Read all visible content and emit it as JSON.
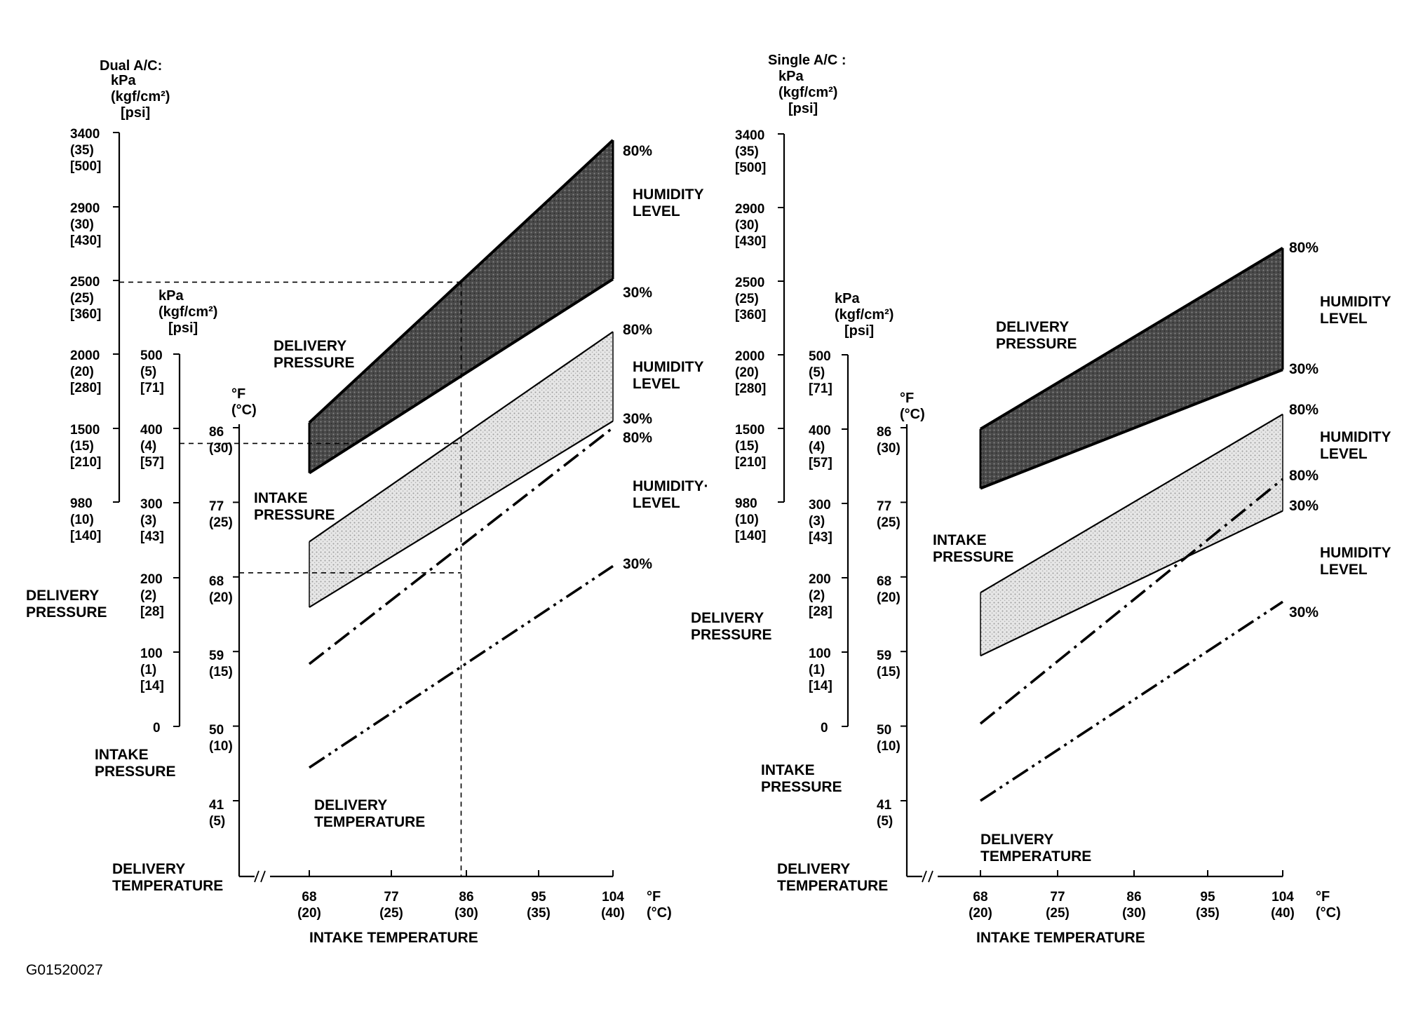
{
  "figure_code": "G01520027",
  "chart_data": [
    {
      "type": "area",
      "title": "Dual A/C:",
      "delivery_pressure_axis": {
        "units": [
          "kPa",
          "(kgf/cm²)",
          "[psi]"
        ],
        "title": [
          "DELIVERY",
          "PRESSURE"
        ],
        "ticks": [
          {
            "kpa": 3400,
            "l1": "3400",
            "l2": "(35)",
            "l3": "[500]"
          },
          {
            "kpa": 2900,
            "l1": "2900",
            "l2": "(30)",
            "l3": "[430]"
          },
          {
            "kpa": 2500,
            "l1": "2500",
            "l2": "(25)",
            "l3": "[360]"
          },
          {
            "kpa": 2000,
            "l1": "2000",
            "l2": "(20)",
            "l3": "[280]"
          },
          {
            "kpa": 1500,
            "l1": "1500",
            "l2": "(15)",
            "l3": "[210]"
          },
          {
            "kpa": 980,
            "l1": "980",
            "l2": "(10)",
            "l3": "[140]"
          }
        ]
      },
      "intake_pressure_axis": {
        "units": [
          "kPa",
          "(kgf/cm²)",
          "[psi]"
        ],
        "title": [
          "INTAKE",
          "PRESSURE"
        ],
        "ticks": [
          {
            "kpa": 500,
            "l1": "500",
            "l2": "(5)",
            "l3": "[71]"
          },
          {
            "kpa": 400,
            "l1": "400",
            "l2": "(4)",
            "l3": "[57]"
          },
          {
            "kpa": 300,
            "l1": "300",
            "l2": "(3)",
            "l3": "[43]"
          },
          {
            "kpa": 200,
            "l1": "200",
            "l2": "(2)",
            "l3": "[28]"
          },
          {
            "kpa": 100,
            "l1": "100",
            "l2": "(1)",
            "l3": "[14]"
          },
          {
            "kpa": 0,
            "l1": "0",
            "l2": "",
            "l3": ""
          }
        ]
      },
      "delivery_temperature_axis": {
        "units": [
          "°F",
          "(°C)"
        ],
        "title": [
          "DELIVERY",
          "TEMPERATURE"
        ],
        "ticks": [
          {
            "f": 86,
            "l1": "86",
            "l2": "(30)"
          },
          {
            "f": 77,
            "l1": "77",
            "l2": "(25)"
          },
          {
            "f": 68,
            "l1": "68",
            "l2": "(20)"
          },
          {
            "f": 59,
            "l1": "59",
            "l2": "(15)"
          },
          {
            "f": 50,
            "l1": "50",
            "l2": "(10)"
          },
          {
            "f": 41,
            "l1": "41",
            "l2": "(5)"
          }
        ]
      },
      "intake_temperature_axis": {
        "title": "INTAKE TEMPERATURE",
        "unit_f": "°F",
        "unit_c": "(°C)",
        "ticks": [
          {
            "f": 68,
            "l1": "68",
            "l2": "(20)"
          },
          {
            "f": 77,
            "l1": "77",
            "l2": "(25)"
          },
          {
            "f": 86,
            "l1": "86",
            "l2": "(30)"
          },
          {
            "f": 95,
            "l1": "95",
            "l2": "(35)"
          },
          {
            "f": 104,
            "l1": "104",
            "l2": "(40)"
          }
        ]
      },
      "bands": [
        {
          "id": "delivery_pressure",
          "label": [
            "DELIVERY",
            "PRESSURE"
          ],
          "fill": "#555555",
          "x": [
            68,
            104
          ],
          "humidity_80_kpa": [
            1500,
            3350
          ],
          "humidity_30_kpa": [
            1170,
            2440
          ],
          "humidity_label": [
            "HUMIDITY",
            "LEVEL"
          ],
          "high_label": "80%",
          "low_label": "30%"
        },
        {
          "id": "intake_pressure",
          "label": [
            "INTAKE",
            "PRESSURE"
          ],
          "fill": "#c4c4c4",
          "x": [
            68,
            104
          ],
          "humidity_80_kpa": [
            248,
            530
          ],
          "humidity_30_kpa": [
            160,
            410
          ],
          "humidity_label": [
            "HUMIDITY",
            "LEVEL"
          ],
          "high_label": "80%",
          "low_label": "30%"
        }
      ],
      "lines": [
        {
          "id": "delivery_temperature_80",
          "label": "80%",
          "x": [
            68,
            104
          ],
          "temp_f": [
            57.5,
            86.0
          ]
        },
        {
          "id": "delivery_temperature_30",
          "label": "30%",
          "x": [
            68,
            104
          ],
          "temp_f": [
            45.0,
            69.3
          ]
        }
      ],
      "delivery_temperature_label": [
        "DELIVERY",
        "TEMPERATURE"
      ],
      "delivery_temperature_humidity_label": [
        "HUMIDITY·",
        "LEVEL"
      ],
      "reference_x_f": 86,
      "reference_delivery_kpa": 2420,
      "reference_intake_kpa": 380,
      "reference_delivery_temp_f": 68.5
    },
    {
      "type": "area",
      "title": "Single A/C :",
      "delivery_pressure_axis": {
        "units": [
          "kPa",
          "(kgf/cm²)",
          "[psi]"
        ],
        "title": [
          "DELIVERY",
          "PRESSURE"
        ],
        "ticks": [
          {
            "kpa": 3400,
            "l1": "3400",
            "l2": "(35)",
            "l3": "[500]"
          },
          {
            "kpa": 2900,
            "l1": "2900",
            "l2": "(30)",
            "l3": "[430]"
          },
          {
            "kpa": 2500,
            "l1": "2500",
            "l2": "(25)",
            "l3": "[360]"
          },
          {
            "kpa": 2000,
            "l1": "2000",
            "l2": "(20)",
            "l3": "[280]"
          },
          {
            "kpa": 1500,
            "l1": "1500",
            "l2": "(15)",
            "l3": "[210]"
          },
          {
            "kpa": 980,
            "l1": "980",
            "l2": "(10)",
            "l3": "[140]"
          }
        ]
      },
      "intake_pressure_axis": {
        "units": [
          "kPa",
          "(kgf/cm²)",
          "[psi]"
        ],
        "title": [
          "INTAKE",
          "PRESSURE"
        ],
        "ticks": [
          {
            "kpa": 500,
            "l1": "500",
            "l2": "(5)",
            "l3": "[71]"
          },
          {
            "kpa": 400,
            "l1": "400",
            "l2": "(4)",
            "l3": "[57]"
          },
          {
            "kpa": 300,
            "l1": "300",
            "l2": "(3)",
            "l3": "[43]"
          },
          {
            "kpa": 200,
            "l1": "200",
            "l2": "(2)",
            "l3": "[28]"
          },
          {
            "kpa": 100,
            "l1": "100",
            "l2": "(1)",
            "l3": "[14]"
          },
          {
            "kpa": 0,
            "l1": "0",
            "l2": "",
            "l3": ""
          }
        ]
      },
      "delivery_temperature_axis": {
        "units": [
          "°F",
          "(°C)"
        ],
        "title": [
          "DELIVERY",
          "TEMPERATURE"
        ],
        "ticks": [
          {
            "f": 86,
            "l1": "86",
            "l2": "(30)"
          },
          {
            "f": 77,
            "l1": "77",
            "l2": "(25)"
          },
          {
            "f": 68,
            "l1": "68",
            "l2": "(20)"
          },
          {
            "f": 59,
            "l1": "59",
            "l2": "(15)"
          },
          {
            "f": 50,
            "l1": "50",
            "l2": "(10)"
          },
          {
            "f": 41,
            "l1": "41",
            "l2": "(5)"
          }
        ]
      },
      "intake_temperature_axis": {
        "title": "INTAKE TEMPERATURE",
        "unit_f": "°F",
        "unit_c": "(°C)",
        "ticks": [
          {
            "f": 68,
            "l1": "68",
            "l2": "(20)"
          },
          {
            "f": 77,
            "l1": "77",
            "l2": "(25)"
          },
          {
            "f": 86,
            "l1": "86",
            "l2": "(30)"
          },
          {
            "f": 95,
            "l1": "95",
            "l2": "(35)"
          },
          {
            "f": 104,
            "l1": "104",
            "l2": "(40)"
          }
        ]
      },
      "bands": [
        {
          "id": "delivery_pressure",
          "label": [
            "DELIVERY",
            "PRESSURE"
          ],
          "fill": "#555555",
          "x": [
            68,
            104
          ],
          "humidity_80_kpa": [
            1460,
            2650
          ],
          "humidity_30_kpa": [
            1070,
            1850
          ],
          "humidity_label": [
            "HUMIDITY",
            "LEVEL"
          ],
          "high_label": "80%",
          "low_label": "30%"
        },
        {
          "id": "intake_pressure",
          "label": [
            "INTAKE",
            "PRESSURE"
          ],
          "fill": "#c4c4c4",
          "x": [
            68,
            104
          ],
          "humidity_80_kpa": [
            180,
            420
          ],
          "humidity_30_kpa": [
            95,
            290
          ],
          "humidity_label": [
            "HUMIDITY",
            "LEVEL"
          ],
          "high_label": "80%",
          "low_label": "30%"
        }
      ],
      "lines": [
        {
          "id": "delivery_temperature_80",
          "label": "80%",
          "x": [
            68,
            104
          ],
          "temp_f": [
            50.3,
            79.8
          ]
        },
        {
          "id": "delivery_temperature_30",
          "label": "30%",
          "x": [
            68,
            104
          ],
          "temp_f": [
            41.0,
            65.0
          ]
        }
      ],
      "delivery_temperature_label": [
        "DELIVERY",
        "TEMPERATURE"
      ],
      "delivery_temperature_humidity_label": [
        "HUMIDITY",
        "LEVEL"
      ]
    }
  ]
}
